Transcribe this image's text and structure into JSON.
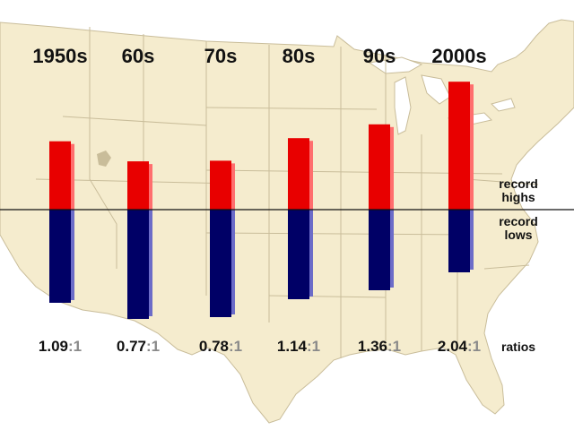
{
  "chart_data": {
    "type": "bar",
    "categories": [
      "1950s",
      "60s",
      "70s",
      "80s",
      "90s",
      "2000s"
    ],
    "series": [
      {
        "name": "record highs",
        "values": [
          1.09,
          0.77,
          0.78,
          1.14,
          1.36,
          2.04
        ]
      },
      {
        "name": "record lows",
        "values": [
          1.0,
          1.0,
          1.0,
          1.0,
          1.0,
          1.0
        ]
      }
    ],
    "ratios": [
      {
        "left": "1.09",
        "right": ":1"
      },
      {
        "left": "0.77",
        "right": ":1"
      },
      {
        "left": "0.78",
        "right": ":1"
      },
      {
        "left": "1.14",
        "right": ":1"
      },
      {
        "left": "1.36",
        "right": ":1"
      },
      {
        "left": "2.04",
        "right": ":1"
      }
    ],
    "labels": {
      "highs_line1": "record",
      "highs_line2": "highs",
      "lows_line1": "record",
      "lows_line2": "lows",
      "ratios": "ratios"
    },
    "legend": "right",
    "grid": false,
    "colors": {
      "highs": "#e80000",
      "highs_side": "#ff6e6e",
      "lows": "#000066",
      "lows_side": "#6c6cc8",
      "map_land": "#f5ecce",
      "map_lines": "#c9bd9a",
      "background": "#ffffff",
      "lakes": "#ffffff"
    }
  }
}
